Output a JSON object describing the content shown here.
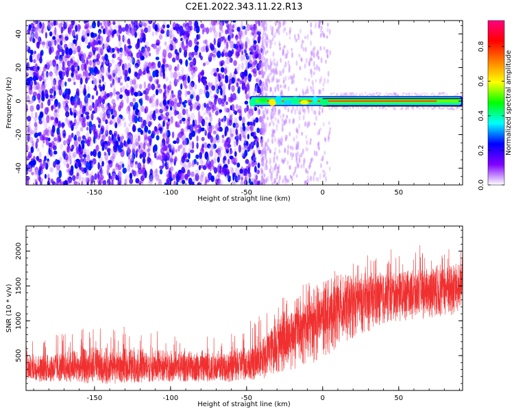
{
  "title": "C2E1.2022.343.11.22.R13",
  "chart_data": [
    {
      "type": "heatmap",
      "xlabel": "Height of straight line (km)",
      "ylabel": "Frequency (Hz)",
      "xlim": [
        -195,
        92
      ],
      "ylim": [
        -50,
        48
      ],
      "xticks": [
        -150,
        -100,
        -50,
        0,
        50
      ],
      "yticks": [
        -40,
        -20,
        0,
        20,
        40
      ],
      "colorbar": {
        "label": "Normalized spectral amplitude",
        "range": [
          0,
          0.95
        ],
        "ticks": [
          0.0,
          0.2,
          0.4,
          0.6,
          0.8
        ],
        "colormap": "rainbow",
        "colors": [
          "#ffffff",
          "#8000ff",
          "#0000ff",
          "#00ffff",
          "#00ff00",
          "#ffff00",
          "#ff8000",
          "#ff0000",
          "#ff0080"
        ]
      },
      "regions": [
        {
          "description": "noise",
          "x": [
            -195,
            -40
          ],
          "y": [
            -50,
            48
          ],
          "amplitude": 0.15
        },
        {
          "description": "sparse",
          "x": [
            -40,
            5
          ],
          "y": [
            -50,
            48
          ],
          "amplitude": 0.05
        },
        {
          "description": "signal band",
          "x": [
            -48,
            92
          ],
          "y_center": 0,
          "y_halfwidth": 3,
          "peak_amplitude": 0.9
        }
      ]
    },
    {
      "type": "line",
      "xlabel": "Height of straight line (km)",
      "ylabel": "SNR (10 * v/v)",
      "xlim": [
        -195,
        92
      ],
      "ylim": [
        0,
        2360
      ],
      "xticks": [
        -150,
        -100,
        -50,
        0,
        50
      ],
      "yticks": [
        500,
        1000,
        1500,
        2000
      ],
      "color": "#f03030",
      "envelope": [
        {
          "x": -195,
          "low": 80,
          "mean": 300,
          "high": 650
        },
        {
          "x": -150,
          "low": 80,
          "mean": 300,
          "high": 900
        },
        {
          "x": -100,
          "low": 80,
          "mean": 310,
          "high": 800
        },
        {
          "x": -60,
          "low": 80,
          "mean": 310,
          "high": 800
        },
        {
          "x": -40,
          "low": 100,
          "mean": 400,
          "high": 1050
        },
        {
          "x": -30,
          "low": 150,
          "mean": 650,
          "high": 1300
        },
        {
          "x": -15,
          "low": 200,
          "mean": 850,
          "high": 1500
        },
        {
          "x": 0,
          "low": 300,
          "mean": 1000,
          "high": 1600
        },
        {
          "x": 10,
          "low": 500,
          "mean": 1150,
          "high": 1750
        },
        {
          "x": 25,
          "low": 700,
          "mean": 1250,
          "high": 1900
        },
        {
          "x": 50,
          "low": 900,
          "mean": 1350,
          "high": 2000
        },
        {
          "x": 75,
          "low": 950,
          "mean": 1400,
          "high": 2050
        },
        {
          "x": 92,
          "low": 950,
          "mean": 1450,
          "high": 2000
        }
      ]
    }
  ]
}
